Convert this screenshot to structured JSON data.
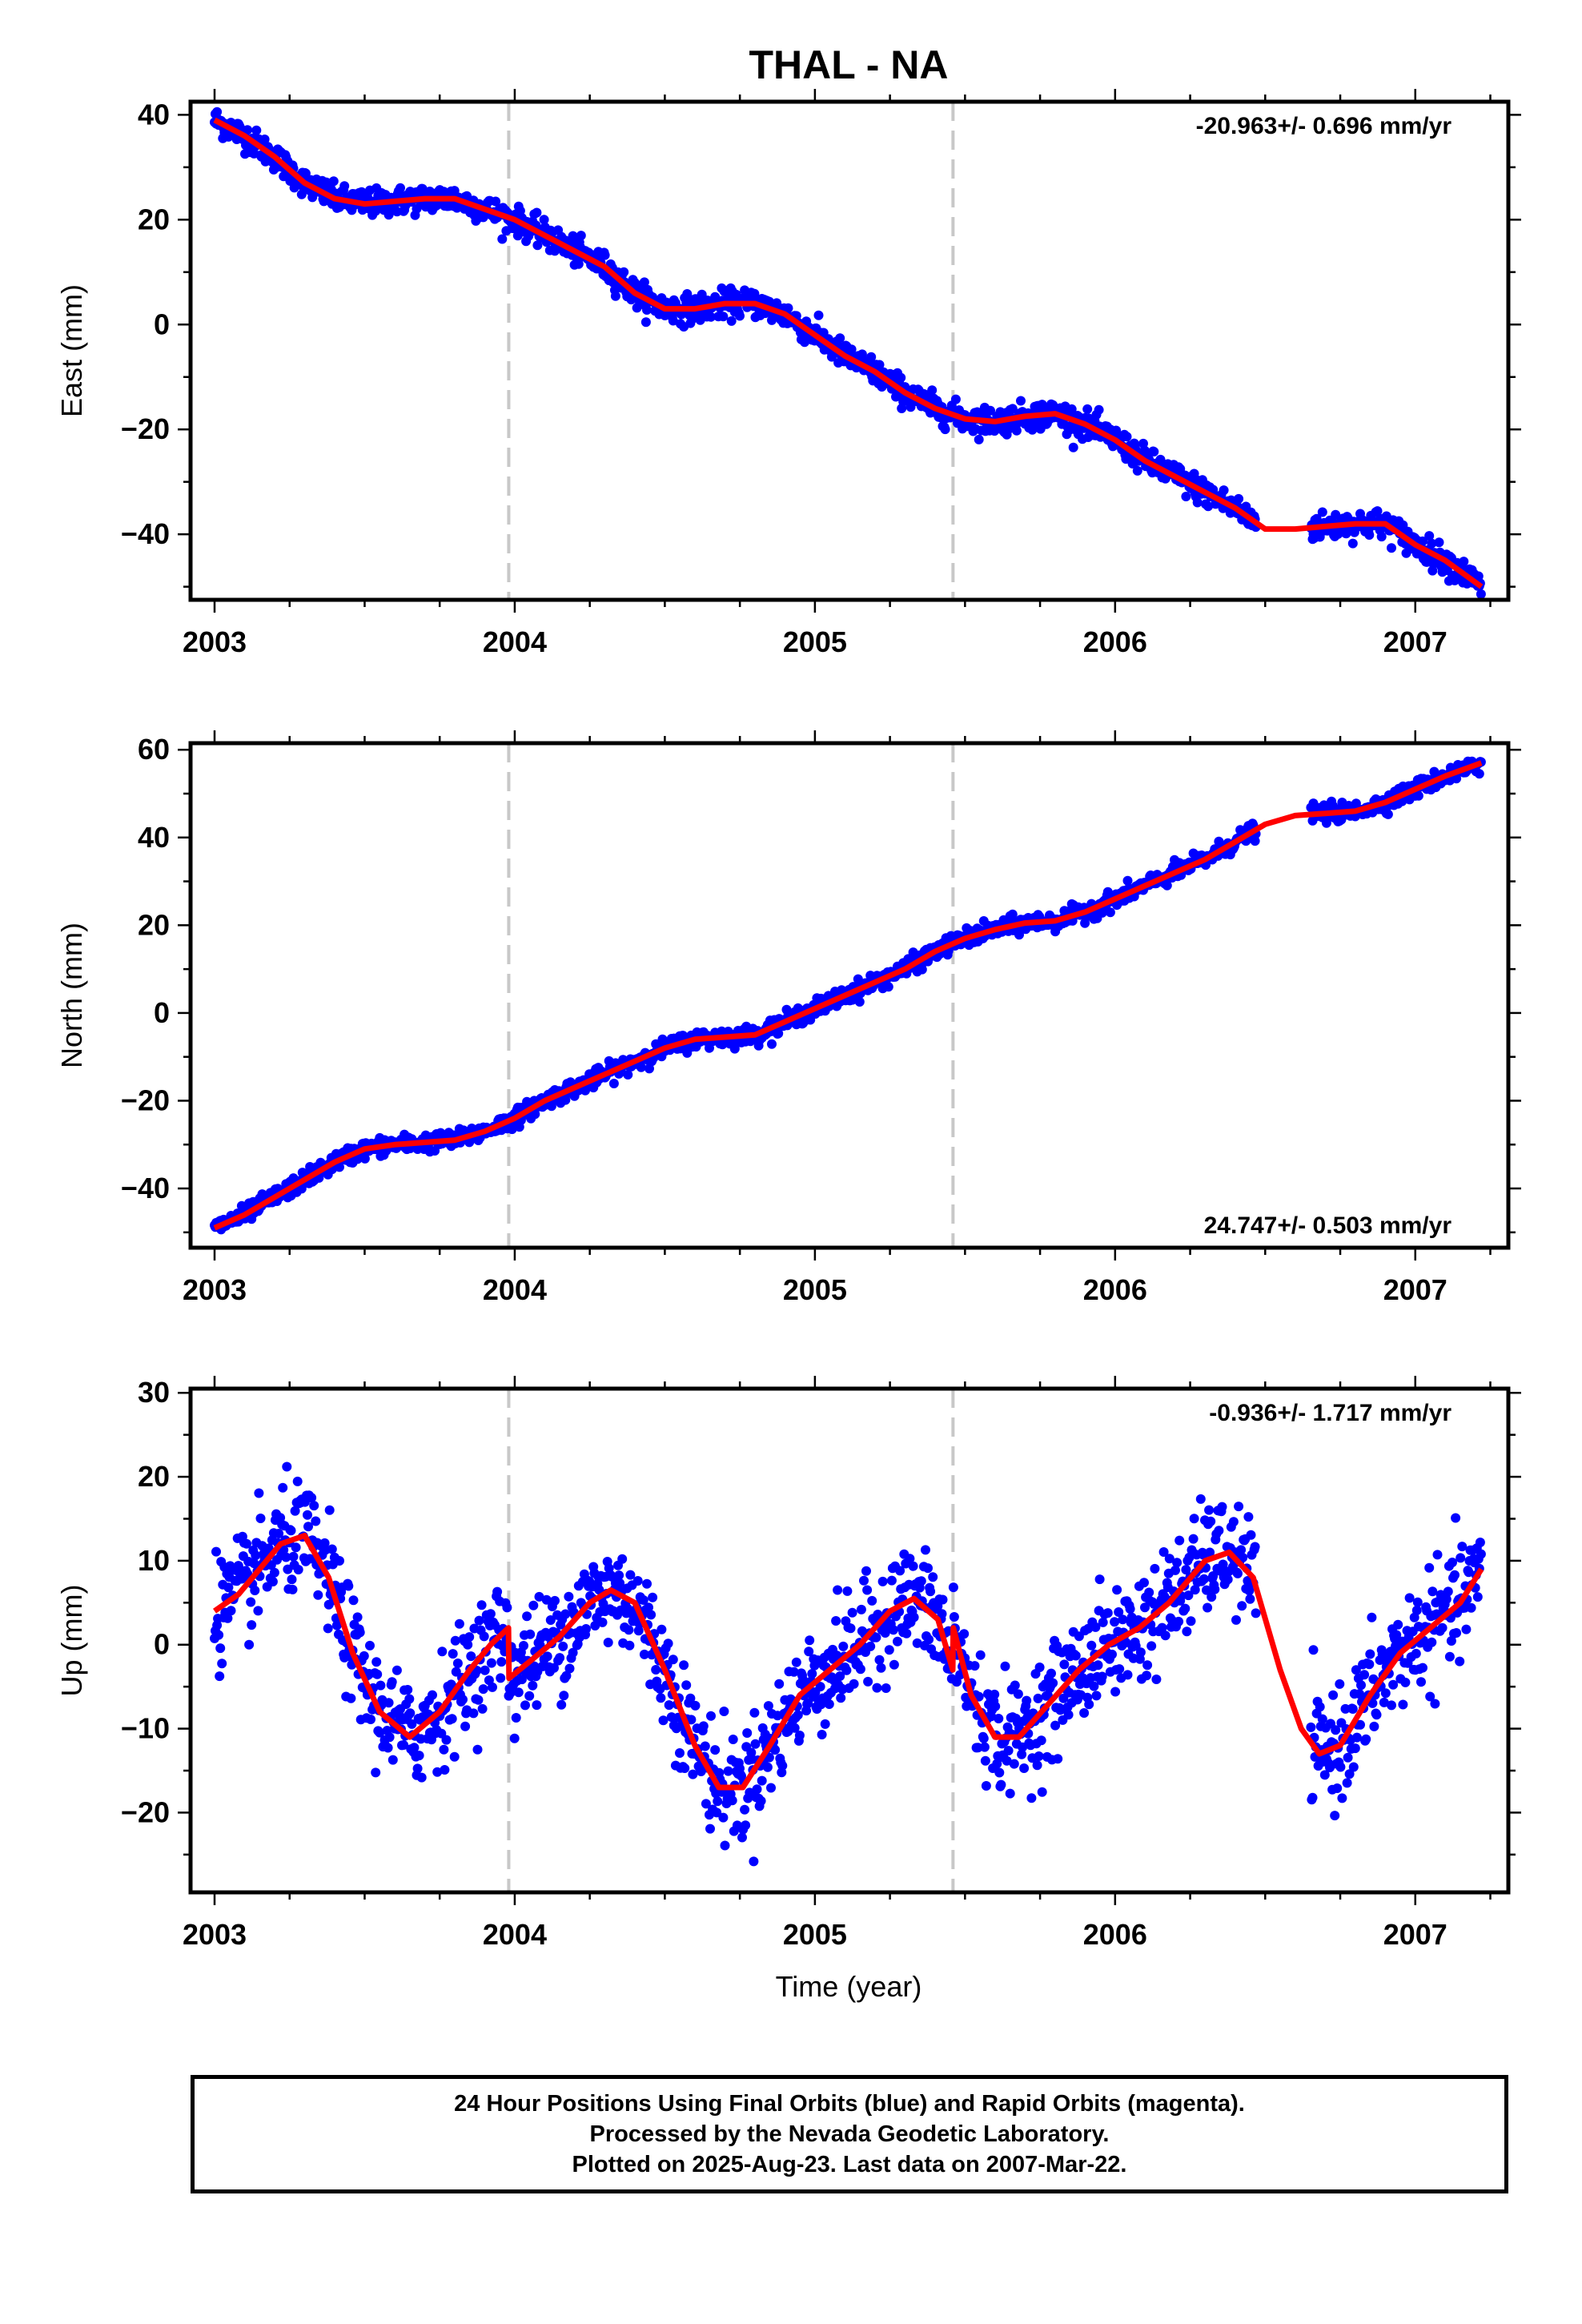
{
  "chart_data": {
    "type": "scatter",
    "title": "THAL - NA",
    "xlabel": "Time (year)",
    "xlim": [
      2002.92,
      2007.31
    ],
    "xticks": [
      2003,
      2004,
      2005,
      2006,
      2007
    ],
    "xtick_labels": [
      "2003",
      "2004",
      "2005",
      "2006",
      "2007"
    ],
    "equipment_change_lines": [
      2003.98,
      2005.46
    ],
    "gap": [
      2006.47,
      2006.65
    ],
    "colors": {
      "data": "#0000ff",
      "fit": "#ff0000",
      "vertical_lines": "#c8c8c8"
    },
    "panels": [
      {
        "id": "east",
        "ylabel": "East (mm)",
        "ylim": [
          -52.5,
          42.5
        ],
        "yticks": [
          -40,
          -20,
          0,
          20,
          40
        ],
        "ytick_labels": [
          "−40",
          "−20",
          "0",
          "20",
          "40"
        ],
        "rate_text": "-20.963+/- 0.696 mm/yr",
        "rate_position": "top-right",
        "rate": -20.963,
        "series": [
          {
            "role": "data",
            "color": "#0000ff",
            "scatter_mm": 1.3
          },
          {
            "role": "fit",
            "color": "#ff0000",
            "x": [
              2003.0,
              2003.1,
              2003.2,
              2003.3,
              2003.4,
              2003.5,
              2003.6,
              2003.7,
              2003.8,
              2003.9,
              2004.0,
              2004.1,
              2004.2,
              2004.3,
              2004.4,
              2004.5,
              2004.6,
              2004.7,
              2004.8,
              2004.9,
              2005.0,
              2005.1,
              2005.2,
              2005.3,
              2005.4,
              2005.5,
              2005.6,
              2005.7,
              2005.8,
              2005.9,
              2006.0,
              2006.1,
              2006.2,
              2006.3,
              2006.4,
              2006.5,
              2006.6,
              2006.7,
              2006.8,
              2006.9,
              2007.0,
              2007.1,
              2007.22
            ],
            "y": [
              39,
              36,
              32,
              27,
              24,
              23,
              23.5,
              24,
              24,
              22,
              20,
              17,
              14,
              11,
              6,
              3,
              3,
              4,
              4,
              2,
              -2,
              -6,
              -9,
              -13,
              -16,
              -18,
              -18.5,
              -17.5,
              -17,
              -19,
              -22,
              -26,
              -29,
              -32,
              -35,
              -39,
              -39,
              -38.5,
              -38,
              -38,
              -42,
              -45,
              -50
            ]
          }
        ]
      },
      {
        "id": "north",
        "ylabel": "North (mm)",
        "ylim": [
          -53.5,
          61.5
        ],
        "yticks": [
          -40,
          -20,
          0,
          20,
          40,
          60
        ],
        "ytick_labels": [
          "−40",
          "−20",
          "0",
          "20",
          "40",
          "60"
        ],
        "rate_text": "24.747+/- 0.503 mm/yr",
        "rate_position": "bottom-right",
        "rate": 24.747,
        "series": [
          {
            "role": "data",
            "color": "#0000ff",
            "scatter_mm": 1.0
          },
          {
            "role": "fit",
            "color": "#ff0000",
            "x": [
              2003.0,
              2003.1,
              2003.2,
              2003.3,
              2003.4,
              2003.5,
              2003.6,
              2003.7,
              2003.8,
              2003.9,
              2004.0,
              2004.1,
              2004.2,
              2004.3,
              2004.4,
              2004.5,
              2004.6,
              2004.7,
              2004.8,
              2004.9,
              2005.0,
              2005.1,
              2005.2,
              2005.3,
              2005.4,
              2005.5,
              2005.6,
              2005.7,
              2005.8,
              2005.9,
              2006.0,
              2006.1,
              2006.2,
              2006.3,
              2006.4,
              2006.5,
              2006.6,
              2006.7,
              2006.8,
              2006.9,
              2007.0,
              2007.1,
              2007.22
            ],
            "y": [
              -49,
              -46,
              -42,
              -38,
              -34,
              -31,
              -30,
              -29.5,
              -29,
              -27,
              -24,
              -20,
              -17,
              -14,
              -11,
              -8,
              -6,
              -5.5,
              -5,
              -2,
              1,
              4,
              7,
              10,
              14,
              17,
              19,
              20.5,
              21,
              23,
              26,
              29,
              32,
              35,
              39,
              43,
              45,
              45.5,
              46,
              48,
              51,
              54,
              57
            ]
          }
        ]
      },
      {
        "id": "up",
        "ylabel": "Up (mm)",
        "ylim": [
          -29.5,
          30.5
        ],
        "yticks": [
          -20,
          -10,
          0,
          10,
          20,
          30
        ],
        "ytick_labels": [
          "−20",
          "−10",
          "0",
          "10",
          "20",
          "30"
        ],
        "rate_text": "-0.936+/- 1.717 mm/yr",
        "rate_position": "top-right",
        "rate": -0.936,
        "series": [
          {
            "role": "data",
            "color": "#0000ff",
            "scatter_mm": 3.2
          },
          {
            "role": "fit",
            "color": "#ff0000",
            "x": [
              2003.0,
              2003.08,
              2003.15,
              2003.22,
              2003.3,
              2003.38,
              2003.46,
              2003.55,
              2003.65,
              2003.75,
              2003.85,
              2003.92,
              2003.979,
              2003.981,
              2004.05,
              2004.15,
              2004.25,
              2004.32,
              2004.4,
              2004.5,
              2004.6,
              2004.68,
              2004.76,
              2004.85,
              2004.95,
              2005.05,
              2005.15,
              2005.25,
              2005.33,
              2005.41,
              2005.459,
              2005.461,
              2005.52,
              2005.6,
              2005.68,
              2005.78,
              2005.88,
              2005.98,
              2006.08,
              2006.18,
              2006.3,
              2006.38,
              2006.46,
              2006.55,
              2006.62,
              2006.68,
              2006.75,
              2006.85,
              2006.95,
              2007.05,
              2007.15,
              2007.22
            ],
            "y": [
              4,
              6,
              9,
              12,
              13,
              8,
              -1,
              -8,
              -11,
              -8,
              -3,
              0,
              2,
              -4,
              -2,
              1,
              5,
              6.5,
              5,
              -3,
              -12,
              -17,
              -17,
              -12,
              -6,
              -3,
              0,
              4,
              5.5,
              3,
              -3,
              2,
              -6,
              -11,
              -11,
              -7,
              -3,
              0,
              2,
              5,
              10,
              11,
              8,
              -3,
              -10,
              -13,
              -12,
              -6,
              -1,
              2,
              5,
              9
            ]
          }
        ]
      }
    ]
  },
  "caption": {
    "line1": "24 Hour Positions Using Final Orbits (blue) and Rapid Orbits (magenta).",
    "line2": "Processed by the Nevada Geodetic Laboratory.",
    "line3": "Plotted on 2025-Aug-23. Last data on 2007-Mar-22."
  }
}
